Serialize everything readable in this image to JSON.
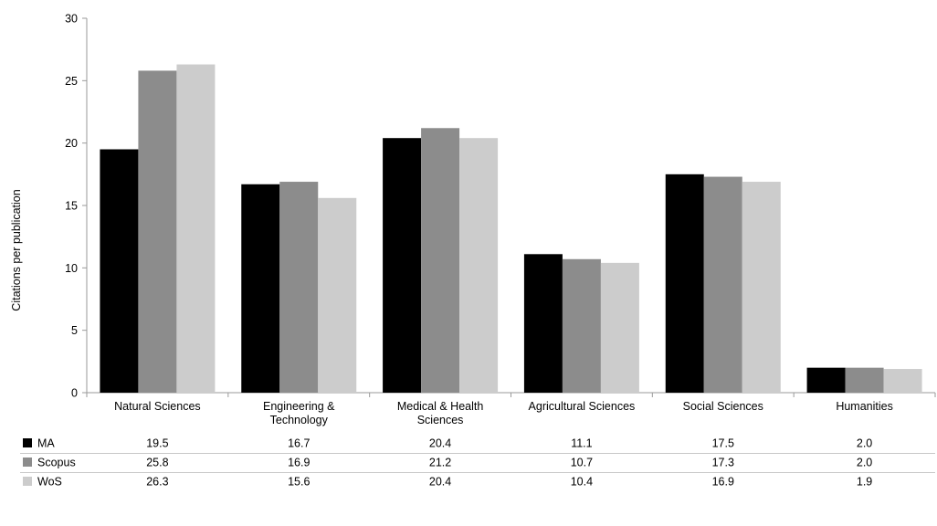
{
  "chart_data": {
    "type": "bar",
    "title": "",
    "xlabel": "",
    "ylabel": "Citations per publication",
    "ylim": [
      0,
      30
    ],
    "yticks": [
      0,
      5,
      10,
      15,
      20,
      25,
      30
    ],
    "grid": false,
    "legend": "data-table-below",
    "categories": [
      [
        "Natural Sciences"
      ],
      [
        "Engineering &",
        "Technology"
      ],
      [
        "Medical & Health",
        "Sciences"
      ],
      [
        "Agricultural Sciences"
      ],
      [
        "Social Sciences"
      ],
      [
        "Humanities"
      ]
    ],
    "series": [
      {
        "name": "MA",
        "color": "#000000",
        "values": [
          19.5,
          16.7,
          20.4,
          11.1,
          17.5,
          2.0
        ]
      },
      {
        "name": "Scopus",
        "color": "#8c8c8c",
        "values": [
          25.8,
          16.9,
          21.2,
          10.7,
          17.3,
          2.0
        ]
      },
      {
        "name": "WoS",
        "color": "#cccccc",
        "values": [
          26.3,
          15.6,
          20.4,
          10.4,
          16.9,
          1.9
        ]
      }
    ]
  }
}
